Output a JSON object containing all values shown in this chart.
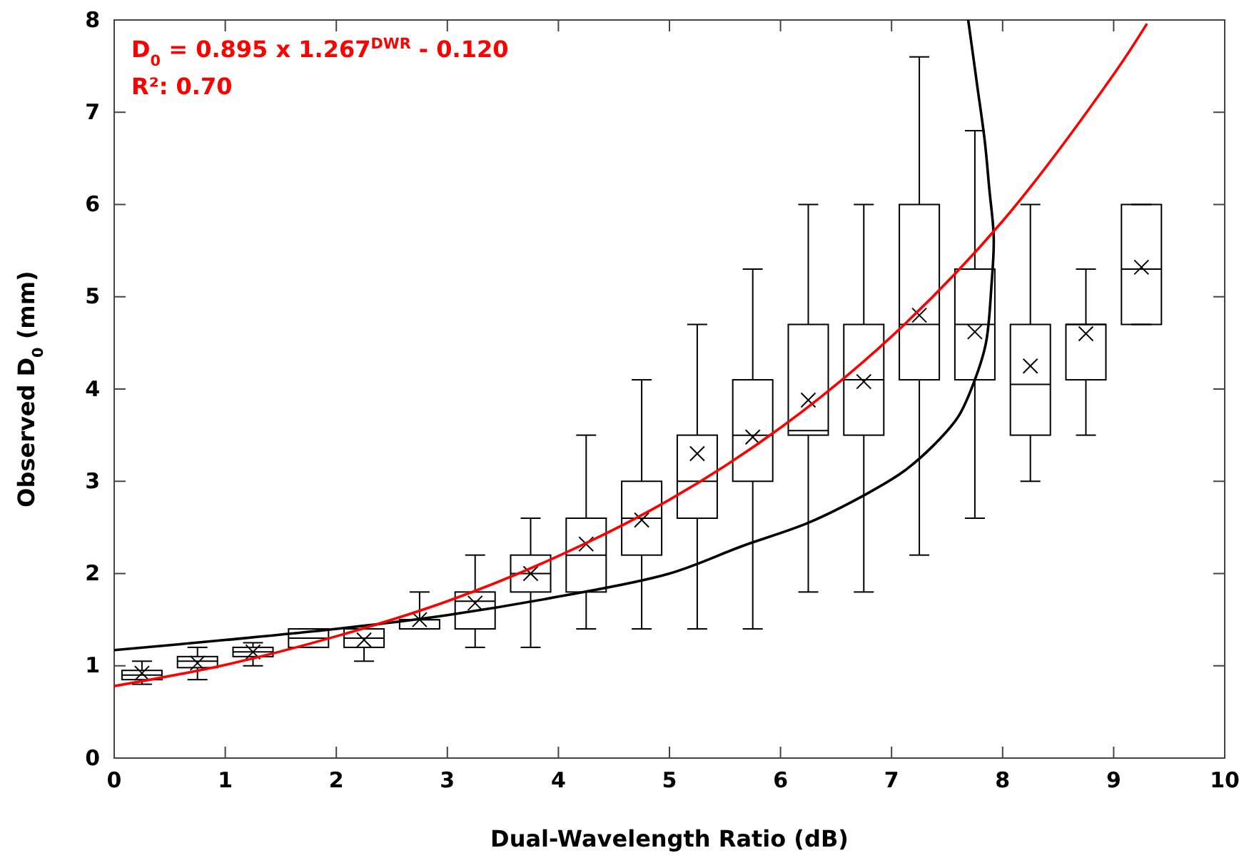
{
  "chart_data": {
    "type": "box",
    "xlabel": "Dual-Wavelength Ratio (dB)",
    "ylabel": "Observed D$_{0}$ (mm)",
    "annotations": [
      "D$_{0}$ = 0.895 x 1.267$^{DWR}$ - 0.120",
      "R²: 0.70"
    ],
    "xlim": [
      0,
      10
    ],
    "xticks": [
      0,
      1,
      2,
      3,
      4,
      5,
      6,
      7,
      8,
      9,
      10
    ],
    "ylim": [
      0,
      8
    ],
    "yticks": [
      0,
      1,
      2,
      3,
      4,
      5,
      6,
      7,
      8
    ],
    "grid": false,
    "series": [
      {
        "color": "#000000",
        "x": [
          0.25,
          0.75,
          1.25,
          1.75,
          2.25,
          2.75,
          3.25,
          3.75,
          4.25,
          4.75,
          5.25,
          5.75,
          6.25,
          6.75,
          7.25,
          7.75,
          8.25,
          8.75,
          9.25
        ],
        "boxes": [
          {
            "low": 0.8,
            "q1": 0.85,
            "median": 0.9,
            "q3": 0.95,
            "high": 1.05,
            "mean": 0.92
          },
          {
            "low": 0.85,
            "q1": 0.98,
            "median": 1.05,
            "q3": 1.1,
            "high": 1.2,
            "mean": 1.03
          },
          {
            "low": 1.0,
            "q1": 1.1,
            "median": 1.15,
            "q3": 1.2,
            "high": 1.25,
            "mean": 1.15
          },
          {
            "low": 1.2,
            "q1": 1.2,
            "median": 1.3,
            "q3": 1.4,
            "high": 1.4
          },
          {
            "low": 1.05,
            "q1": 1.2,
            "median": 1.3,
            "q3": 1.4,
            "high": 1.4,
            "mean": 1.28
          },
          {
            "low": 1.4,
            "q1": 1.4,
            "median": 1.5,
            "q3": 1.5,
            "high": 1.8,
            "mean": 1.5
          },
          {
            "low": 1.2,
            "q1": 1.4,
            "median": 1.7,
            "q3": 1.8,
            "high": 2.2,
            "mean": 1.68
          },
          {
            "low": 1.2,
            "q1": 1.8,
            "median": 2.0,
            "q3": 2.2,
            "high": 2.6,
            "mean": 2.0
          },
          {
            "low": 1.4,
            "q1": 1.8,
            "median": 2.2,
            "q3": 2.6,
            "high": 3.5,
            "mean": 2.32
          },
          {
            "low": 1.4,
            "q1": 2.2,
            "median": 2.6,
            "q3": 3.0,
            "high": 4.1,
            "mean": 2.58
          },
          {
            "low": 1.4,
            "q1": 2.6,
            "median": 3.0,
            "q3": 3.5,
            "high": 4.7,
            "mean": 3.3
          },
          {
            "low": 1.4,
            "q1": 3.0,
            "median": 3.5,
            "q3": 4.1,
            "high": 5.3,
            "mean": 3.48
          },
          {
            "low": 1.8,
            "q1": 3.5,
            "median": 3.55,
            "q3": 4.7,
            "high": 6.0,
            "mean": 3.88
          },
          {
            "low": 1.8,
            "q1": 3.5,
            "median": 4.1,
            "q3": 4.7,
            "high": 6.0,
            "mean": 4.08
          },
          {
            "low": 2.2,
            "q1": 4.1,
            "median": 4.7,
            "q3": 6.0,
            "high": 7.6,
            "mean": 4.8
          },
          {
            "low": 2.6,
            "q1": 4.1,
            "median": 4.7,
            "q3": 5.3,
            "high": 6.8,
            "mean": 4.62
          },
          {
            "low": 3.0,
            "q1": 3.5,
            "median": 4.05,
            "q3": 4.7,
            "high": 6.0,
            "mean": 4.25
          },
          {
            "low": 3.5,
            "q1": 4.1,
            "median": 4.7,
            "q3": 4.7,
            "high": 5.3,
            "mean": 4.6
          },
          {
            "low": 4.7,
            "q1": 4.7,
            "median": 5.3,
            "q3": 6.0,
            "high": 6.0,
            "mean": 5.32
          }
        ]
      },
      {
        "type": "line",
        "color": "#000000",
        "x": [
          0,
          1,
          2,
          3,
          4,
          5,
          5.66,
          6.25,
          6.77,
          7.1,
          7.37,
          7.6,
          7.75,
          7.85,
          7.9,
          7.92,
          7.88,
          7.84,
          7.77,
          7.69
        ],
        "values": [
          1.17,
          1.28,
          1.4,
          1.55,
          1.75,
          2.0,
          2.3,
          2.55,
          2.86,
          3.1,
          3.38,
          3.7,
          4.1,
          4.5,
          5.13,
          5.64,
          6.17,
          6.68,
          7.3,
          8.0
        ]
      },
      {
        "type": "line",
        "color": "#ff0000",
        "x": [
          0,
          1,
          2,
          3,
          4,
          5,
          6,
          7,
          8,
          9,
          9.3
        ],
        "values": [
          0.78,
          1.01,
          1.32,
          1.7,
          2.19,
          2.8,
          3.58,
          4.57,
          5.82,
          7.41,
          7.96
        ]
      }
    ]
  }
}
